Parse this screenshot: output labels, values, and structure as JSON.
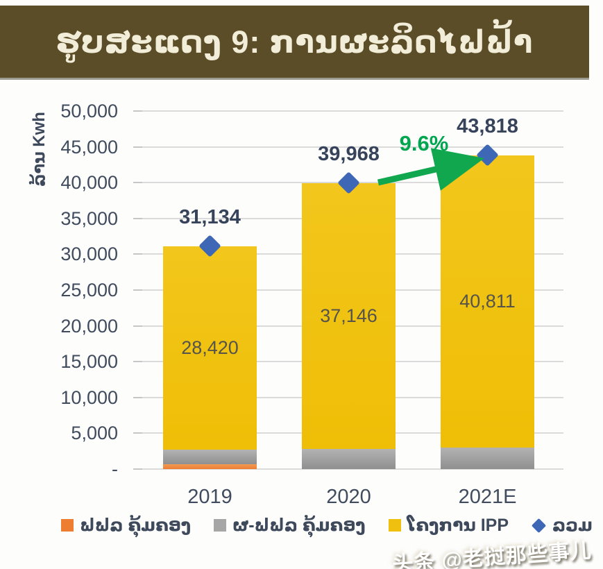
{
  "header": {
    "bg": "#5A4D28",
    "text_color": "#F2EDD8"
  },
  "watermark": {
    "text": "头条 @老挝那些事儿"
  },
  "chart_data": {
    "type": "bar",
    "stacked": true,
    "title": "ຮູບສະແດງ 9: ການຜະລິດໄຟຟ້າ",
    "ylabel": "ລ້ານ Kwh",
    "categories": [
      "2019",
      "2020",
      "2021E"
    ],
    "series": [
      {
        "name": "ຟຟລ ຄຸ້ມຄອງ",
        "color": "#ED7D31",
        "values": [
          700,
          0,
          0
        ]
      },
      {
        "name": "ຜ-ຟຟລ ຄຸ້ມຄອງ",
        "color": "#A6A6A6",
        "values": [
          2014,
          2822,
          3007
        ]
      },
      {
        "name": "ໂຄງການ IPP",
        "color": "#F0C011",
        "values": [
          28420,
          37146,
          40811
        ],
        "labels": [
          "28,420",
          "37,146",
          "40,811"
        ]
      }
    ],
    "totals": {
      "name": "ລວມ",
      "marker": "diamond",
      "color": "#3E68B5",
      "values": [
        31134,
        39968,
        43818
      ],
      "labels": [
        "31,134",
        "39,968",
        "43,818"
      ]
    },
    "annotation": {
      "text": "9.6%",
      "color": "#00A64F",
      "from_category": "2020",
      "to_category": "2021E"
    },
    "ylim": [
      0,
      50000
    ],
    "ytick_step": 5000,
    "ytick_labels": [
      "-",
      "5,000",
      "10,000",
      "15,000",
      "20,000",
      "25,000",
      "30,000",
      "35,000",
      "40,000",
      "45,000",
      "50,000"
    ],
    "grid": true,
    "legend_position": "bottom"
  }
}
